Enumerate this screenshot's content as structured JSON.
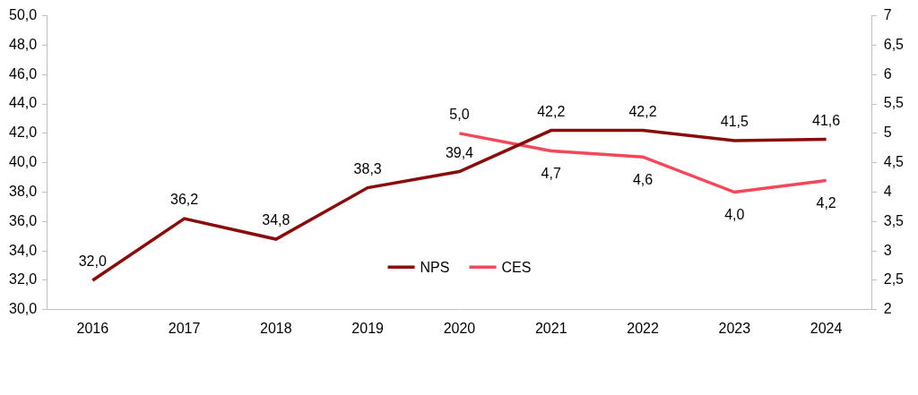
{
  "chart_data": {
    "type": "line",
    "categories": [
      "2016",
      "2017",
      "2018",
      "2019",
      "2020",
      "2021",
      "2022",
      "2023",
      "2024"
    ],
    "series": [
      {
        "name": "NPS",
        "color": "#8b0a0a",
        "values": [
          32.0,
          36.2,
          34.8,
          38.3,
          39.4,
          42.2,
          42.2,
          41.5,
          41.6
        ],
        "value_labels": [
          "32,0",
          "36,2",
          "34,8",
          "38,3",
          "39,4",
          "42,2",
          "42,2",
          "41,5",
          "41,6"
        ]
      },
      {
        "name": "CES",
        "color": "#f2485a",
        "axis": "y2",
        "values": [
          null,
          null,
          null,
          null,
          5.0,
          4.7,
          4.6,
          4.0,
          4.2
        ],
        "value_labels": [
          null,
          null,
          null,
          null,
          "5,0",
          "4,7",
          "4,6",
          "4,0",
          "4,2"
        ]
      }
    ],
    "ylim": [
      30,
      50
    ],
    "yticks": [
      {
        "value": 30,
        "label": "30,0"
      },
      {
        "value": 32,
        "label": "32,0"
      },
      {
        "value": 34,
        "label": "34,0"
      },
      {
        "value": 36,
        "label": "36,0"
      },
      {
        "value": 38,
        "label": "38,0"
      },
      {
        "value": 40,
        "label": "40,0"
      },
      {
        "value": 42,
        "label": "42,0"
      },
      {
        "value": 44,
        "label": "44,0"
      },
      {
        "value": 46,
        "label": "46,0"
      },
      {
        "value": 48,
        "label": "48,0"
      },
      {
        "value": 50,
        "label": "50,0"
      }
    ],
    "y2lim": [
      2,
      7
    ],
    "y2ticks": [
      2,
      {
        "value": 2.5,
        "label": "2,5"
      },
      3,
      {
        "value": 3.5,
        "label": "3,5"
      },
      4,
      {
        "value": 4.5,
        "label": "4,5"
      },
      5,
      {
        "value": 5.5,
        "label": "5,5"
      },
      6,
      {
        "value": 6.5,
        "label": "6,5"
      },
      7
    ],
    "grid": false,
    "legend": "bottom",
    "data_labels": true
  }
}
